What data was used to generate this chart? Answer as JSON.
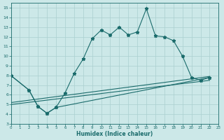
{
  "xlabel": "Humidex (Indice chaleur)",
  "background_color": "#cce8e8",
  "grid_color": "#aacfcf",
  "line_color": "#1a6b6b",
  "xlim": [
    0,
    23
  ],
  "ylim": [
    3,
    15.5
  ],
  "xticks": [
    0,
    1,
    2,
    3,
    4,
    5,
    6,
    7,
    8,
    9,
    10,
    11,
    12,
    13,
    14,
    15,
    16,
    17,
    18,
    19,
    20,
    21,
    22,
    23
  ],
  "yticks": [
    3,
    4,
    5,
    6,
    7,
    8,
    9,
    10,
    11,
    12,
    13,
    14,
    15
  ],
  "line1_x": [
    0,
    2,
    3,
    4,
    5,
    6,
    7,
    8,
    9,
    10,
    11,
    12,
    13,
    14,
    15,
    16,
    17,
    18,
    19,
    20,
    21,
    22
  ],
  "line1_y": [
    8.0,
    6.5,
    4.8,
    4.1,
    4.7,
    6.2,
    8.2,
    9.7,
    11.8,
    12.7,
    12.2,
    13.0,
    12.2,
    12.5,
    14.9,
    12.1,
    12.0,
    11.6,
    10.0,
    7.8,
    7.5,
    7.8
  ],
  "line2_x": [
    0,
    2,
    3,
    4,
    5,
    22
  ],
  "line2_y": [
    8.0,
    6.5,
    4.8,
    4.1,
    4.7,
    7.8
  ],
  "line3_x": [
    0,
    22
  ],
  "line3_y": [
    5.2,
    7.9
  ],
  "line4_x": [
    0,
    22
  ],
  "line4_y": [
    5.0,
    7.5
  ],
  "markersize": 3.5
}
